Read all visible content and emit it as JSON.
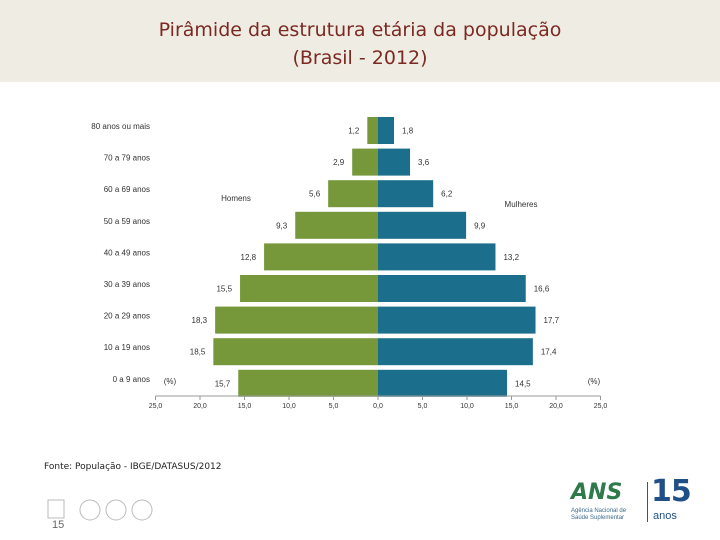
{
  "header": {
    "title_line1": "Pirâmide da estrutura etária da população",
    "title_line2": "(Brasil - 2012)"
  },
  "chart_data": {
    "type": "bar",
    "orientation": "horizontal-population-pyramid",
    "categories": [
      "80 anos ou mais",
      "70 a 79 anos",
      "60 a 69 anos",
      "50 a 59 anos",
      "40 a 49 anos",
      "30 a 39 anos",
      "20 a 29 anos",
      "10 a 19 anos",
      "0 a 9 anos"
    ],
    "series": [
      {
        "name": "Homens",
        "values": [
          1.2,
          2.9,
          5.6,
          9.3,
          12.8,
          15.5,
          18.3,
          18.5,
          15.7
        ],
        "labels": [
          "1,2",
          "2,9",
          "5,6",
          "9,3",
          "12,8",
          "15,5",
          "18,3",
          "18,5",
          "15,7"
        ]
      },
      {
        "name": "Mulheres",
        "values": [
          1.8,
          3.6,
          6.2,
          9.9,
          13.2,
          16.6,
          17.7,
          17.4,
          14.5
        ],
        "labels": [
          "1,8",
          "3,6",
          "6,2",
          "9,9",
          "13,2",
          "16,6",
          "17,7",
          "17,4",
          "14,5"
        ]
      }
    ],
    "xlim": [
      -25,
      25
    ],
    "x_ticks": [
      "25,0",
      "20,0",
      "15,0",
      "10,0",
      "5,0",
      "0,0",
      "5,0",
      "10,0",
      "15,0",
      "20,0",
      "25,0"
    ],
    "unit_label_left": "(%)",
    "unit_label_right": "(%)",
    "colors": {
      "Homens": "#76983b",
      "Mulheres": "#1b6f8c"
    },
    "grid": false
  },
  "footer": {
    "source": "Fonte: População - IBGE/DATASUS/2012",
    "page_number": "15",
    "logo_name": "ANS",
    "logo_subtitle": "Agência Nacional de Saúde Suplementar",
    "logo_number": "15",
    "logo_anos": "anos"
  }
}
